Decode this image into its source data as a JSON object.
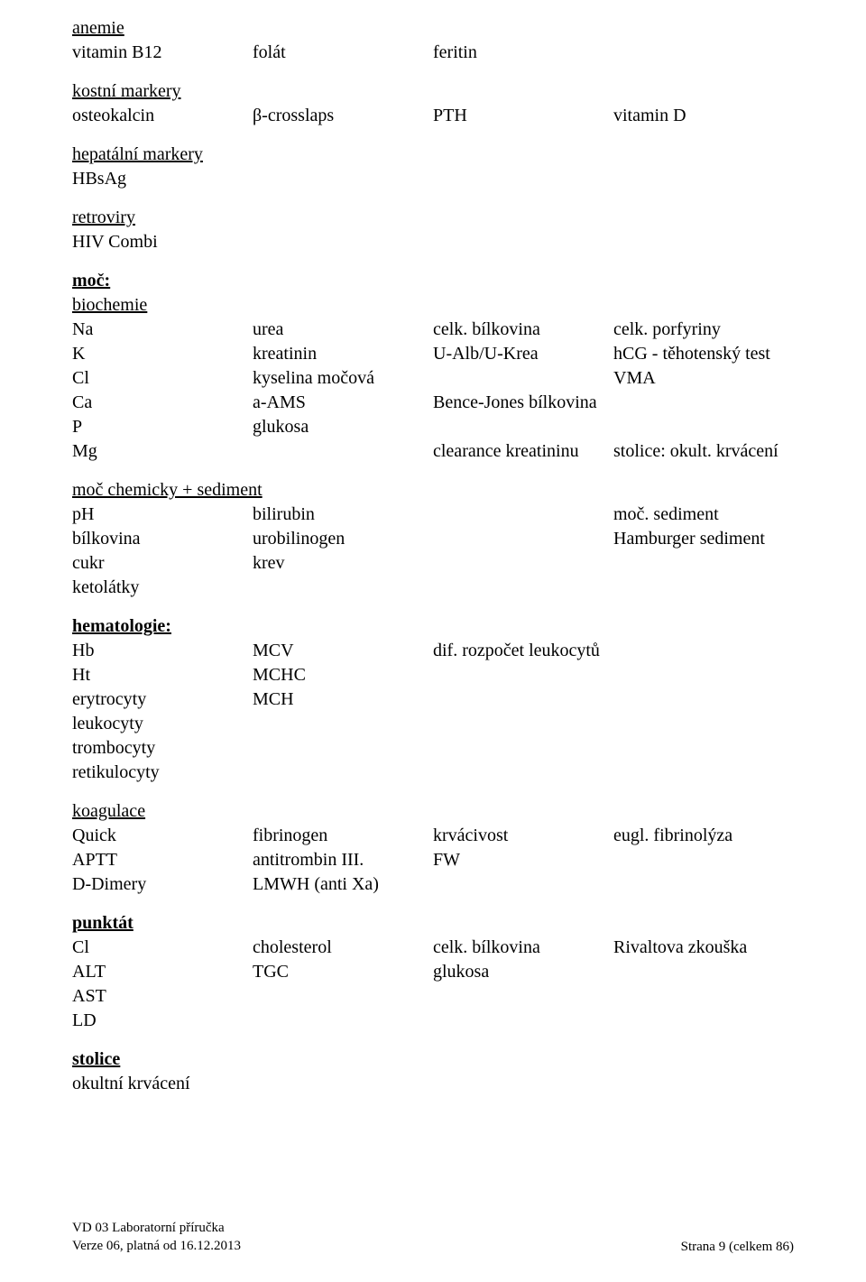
{
  "anemie": {
    "heading": "anemie",
    "rows": [
      {
        "c1": "vitamin B12",
        "c2": "folát",
        "c3": "feritin",
        "c4": ""
      }
    ]
  },
  "kostni": {
    "heading": "kostní markery",
    "rows": [
      {
        "c1": "osteokalcin",
        "c2": "β-crosslaps",
        "c3": "PTH",
        "c4": "vitamin D"
      }
    ]
  },
  "hepatalni": {
    "heading": "hepatální markery",
    "rows": [
      {
        "c1": "HBsAg",
        "c2": "",
        "c3": "",
        "c4": ""
      }
    ]
  },
  "retroviry": {
    "heading": "retroviry",
    "rows": [
      {
        "c1": "HIV Combi",
        "c2": "",
        "c3": "",
        "c4": ""
      }
    ]
  },
  "moc_heading": "moč:",
  "biochemie": {
    "heading": "biochemie",
    "rows": [
      {
        "c1": "Na",
        "c2": "urea",
        "c3": "celk. bílkovina",
        "c4": "celk. porfyriny"
      },
      {
        "c1": "K",
        "c2": "kreatinin",
        "c3": "U-Alb/U-Krea",
        "c4": "hCG - těhotenský test"
      },
      {
        "c1": "Cl",
        "c2": "kyselina močová",
        "c3": "",
        "c4": "VMA"
      },
      {
        "c1": "Ca",
        "c2": "a-AMS",
        "c3": "Bence-Jones bílkovina",
        "c4": ""
      },
      {
        "c1": "P",
        "c2": "glukosa",
        "c3": "",
        "c4": ""
      },
      {
        "c1": "Mg",
        "c2": "",
        "c3": "clearance kreatininu",
        "c4": "stolice: okult. krvácení"
      }
    ]
  },
  "moc_chem": {
    "heading": "moč chemicky + sediment",
    "rows": [
      {
        "c1": "pH",
        "c2": "bilirubin",
        "c3": "",
        "c4": "moč. sediment"
      },
      {
        "c1": "bílkovina",
        "c2": "urobilinogen",
        "c3": "",
        "c4": "Hamburger sediment"
      },
      {
        "c1": "cukr",
        "c2": "krev",
        "c3": "",
        "c4": ""
      },
      {
        "c1": "ketolátky",
        "c2": "",
        "c3": "",
        "c4": ""
      }
    ]
  },
  "hematologie_heading": "hematologie:",
  "hematologie": {
    "rows": [
      {
        "c1": "Hb",
        "c2": "MCV",
        "c3": "dif. rozpočet leukocytů",
        "c4": ""
      },
      {
        "c1": "Ht",
        "c2": "MCHC",
        "c3": "",
        "c4": ""
      },
      {
        "c1": "erytrocyty",
        "c2": "MCH",
        "c3": "",
        "c4": ""
      },
      {
        "c1": "leukocyty",
        "c2": "",
        "c3": "",
        "c4": ""
      },
      {
        "c1": "trombocyty",
        "c2": "",
        "c3": "",
        "c4": ""
      },
      {
        "c1": "retikulocyty",
        "c2": "",
        "c3": "",
        "c4": ""
      }
    ]
  },
  "koagulace": {
    "heading": "koagulace",
    "rows": [
      {
        "c1": "Quick",
        "c2": "fibrinogen",
        "c3": "krvácivost",
        "c4": "eugl. fibrinolýza"
      },
      {
        "c1": "APTT",
        "c2": "antitrombin III.",
        "c3": "FW",
        "c4": ""
      },
      {
        "c1": "D-Dimery",
        "c2": "LMWH (anti Xa)",
        "c3": "",
        "c4": ""
      }
    ]
  },
  "punktat": {
    "heading": "punktát",
    "rows": [
      {
        "c1": "Cl",
        "c2": "cholesterol",
        "c3": "celk. bílkovina",
        "c4": "Rivaltova zkouška"
      },
      {
        "c1": "ALT",
        "c2": "TGC",
        "c3": "glukosa",
        "c4": ""
      },
      {
        "c1": "AST",
        "c2": "",
        "c3": "",
        "c4": ""
      },
      {
        "c1": "LD",
        "c2": "",
        "c3": "",
        "c4": ""
      }
    ]
  },
  "stolice": {
    "heading": "stolice",
    "rows": [
      {
        "c1": "okultní krvácení",
        "c2": "",
        "c3": "",
        "c4": ""
      }
    ]
  },
  "footer": {
    "left1": "VD 03 Laboratorní příručka",
    "left2": "Verze 06, platná od 16.12.2013",
    "right": "Strana 9 (celkem 86)"
  }
}
